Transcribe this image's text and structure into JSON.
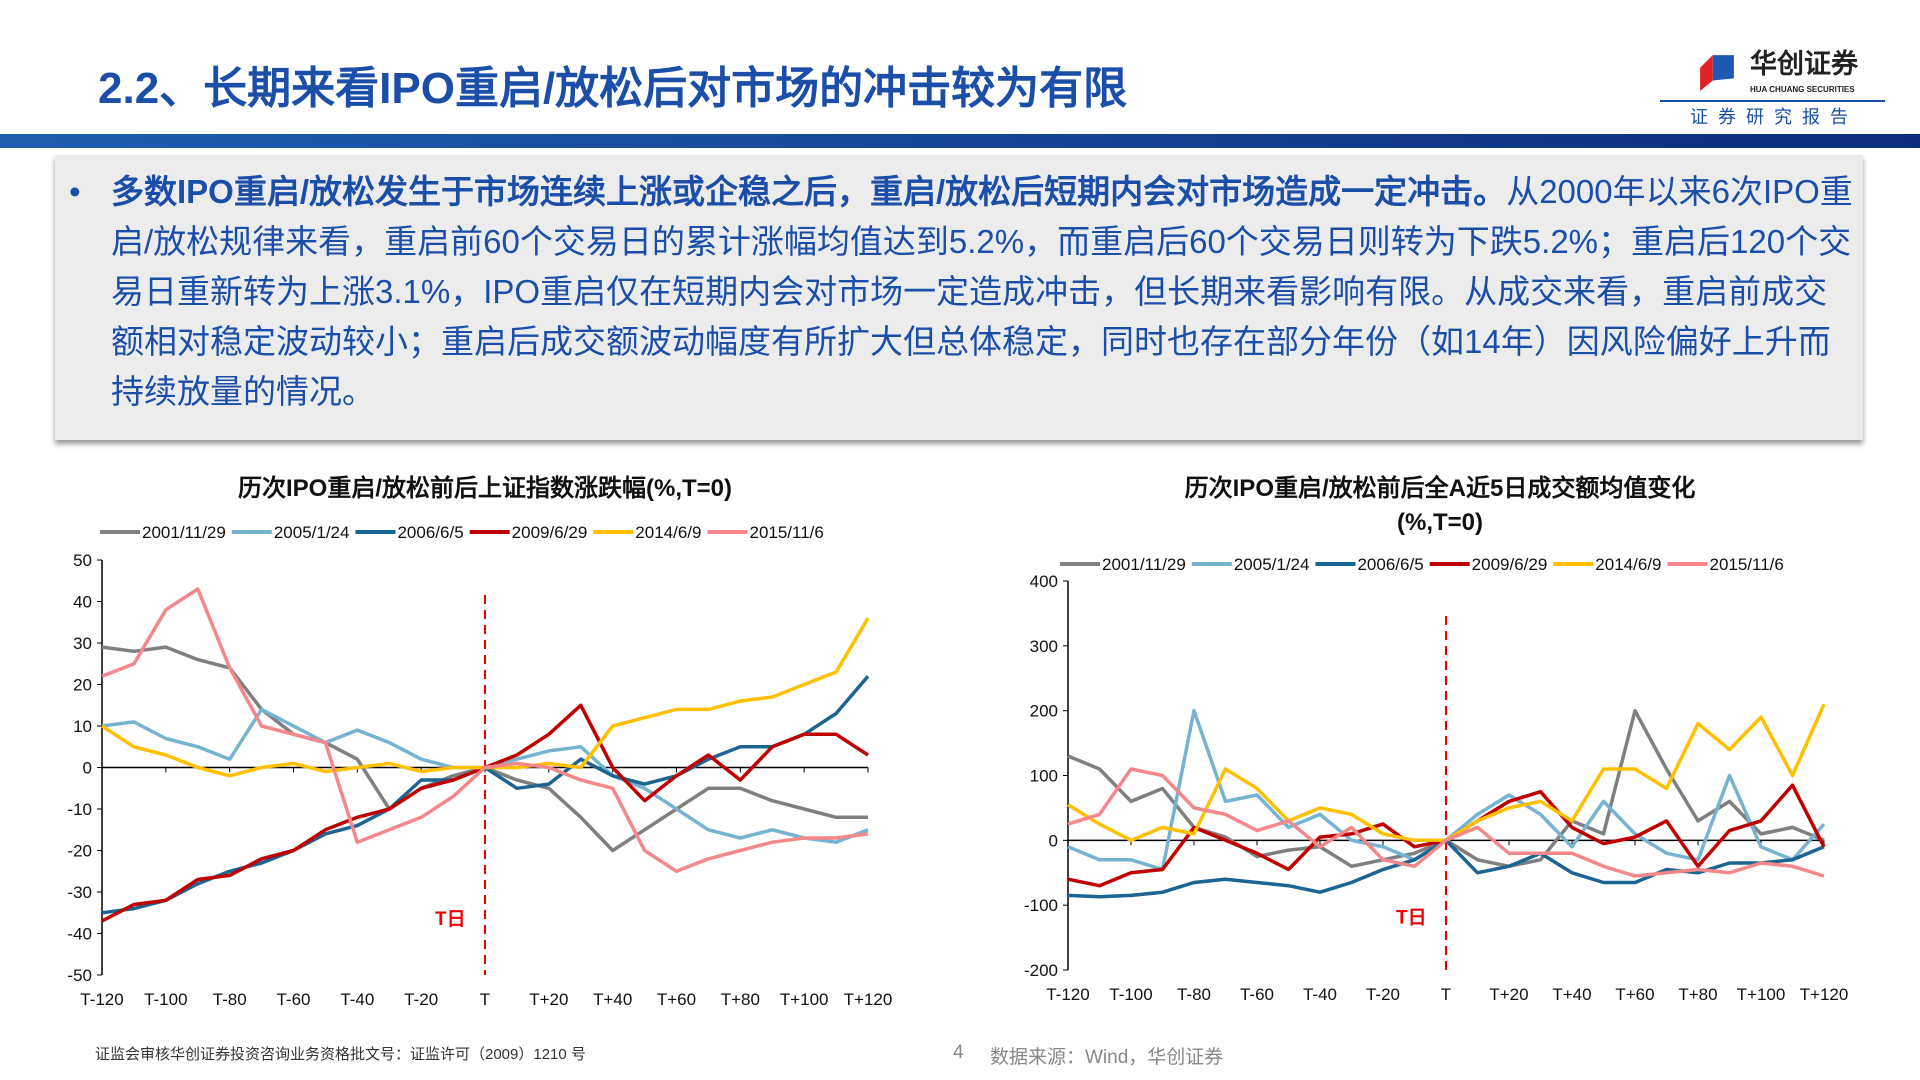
{
  "header": {
    "title": "2.2、长期来看IPO重启/放松后对市场的冲击较为有限",
    "logo_cn": "华创证券",
    "logo_en": "HUA CHUANG SECURITIES",
    "logo_sub": "证券研究报告"
  },
  "summary": {
    "bullet": "•",
    "bold": "多数IPO重启/放松发生于市场连续上涨或企稳之后，重启/放松后短期内会对市场造成一定冲击。",
    "rest": "从2000年以来6次IPO重启/放松规律来看，重启前60个交易日的累计涨幅均值达到5.2%，而重启后60个交易日则转为下跌5.2%；重启后120个交易日重新转为上涨3.1%，IPO重启仅在短期内会对市场一定造成冲击，但长期来看影响有限。从成交来看，重启前成交额相对稳定波动较小；重启后成交额波动幅度有所扩大但总体稳定，同时也存在部分年份（如14年）因风险偏好上升而持续放量的情况。"
  },
  "footer": {
    "license": "证监会审核华创证券投资咨询业务资格批文号：证监许可（2009）1210 号",
    "page": "4",
    "source": "数据来源：Wind，华创证券"
  },
  "chart_data": [
    {
      "type": "line",
      "title": "历次IPO重启/放松前后上证指数涨跌幅(%,T=0)",
      "marker_label": "T日",
      "ylim": [
        -50,
        50
      ],
      "yticks": [
        50,
        40,
        30,
        20,
        10,
        0,
        -10,
        -20,
        -30,
        -40,
        -50
      ],
      "xtick_labels": [
        "T-120",
        "T-100",
        "T-80",
        "T-60",
        "T-40",
        "T-20",
        "T",
        "T+20",
        "T+40",
        "T+60",
        "T+80",
        "T+100",
        "T+120"
      ],
      "x": [
        -120,
        -110,
        -100,
        -90,
        -80,
        -70,
        -60,
        -50,
        -40,
        -30,
        -20,
        -10,
        0,
        10,
        20,
        30,
        40,
        50,
        60,
        70,
        80,
        90,
        100,
        110,
        120
      ],
      "series": [
        {
          "name": "2001/11/29",
          "color": "#7f7f7f",
          "values": [
            29,
            28,
            29,
            26,
            24,
            14,
            8,
            6,
            2,
            -10,
            -5,
            -2,
            0,
            -3,
            -5,
            -12,
            -20,
            -15,
            -10,
            -5,
            -5,
            -8,
            -10,
            -12,
            -12
          ]
        },
        {
          "name": "2005/1/24",
          "color": "#75b3d1",
          "values": [
            10,
            11,
            7,
            5,
            2,
            14,
            10,
            6,
            9,
            6,
            2,
            0,
            0,
            2,
            4,
            5,
            -2,
            -5,
            -10,
            -15,
            -17,
            -15,
            -17,
            -18,
            -15
          ]
        },
        {
          "name": "2006/6/5",
          "color": "#1c6491",
          "values": [
            -35,
            -34,
            -32,
            -28,
            -25,
            -23,
            -20,
            -16,
            -14,
            -10,
            -3,
            -3,
            0,
            -5,
            -4,
            2,
            -2,
            -4,
            -2,
            2,
            5,
            5,
            8,
            13,
            22
          ]
        },
        {
          "name": "2009/6/29",
          "color": "#c00000",
          "values": [
            -37,
            -33,
            -32,
            -27,
            -26,
            -22,
            -20,
            -15,
            -12,
            -10,
            -5,
            -3,
            0,
            3,
            8,
            15,
            0,
            -8,
            -2,
            3,
            -3,
            5,
            8,
            8,
            3
          ]
        },
        {
          "name": "2014/6/9",
          "color": "#ffc000",
          "values": [
            10,
            5,
            3,
            0,
            -2,
            0,
            1,
            -1,
            0,
            1,
            -1,
            0,
            0,
            0,
            1,
            0,
            10,
            12,
            14,
            14,
            16,
            17,
            20,
            23,
            36
          ]
        },
        {
          "name": "2015/11/6",
          "color": "#f4878a",
          "values": [
            22,
            25,
            38,
            43,
            24,
            10,
            8,
            6,
            -18,
            -15,
            -12,
            -7,
            0,
            1,
            0,
            -3,
            -5,
            -20,
            -25,
            -22,
            -20,
            -18,
            -17,
            -17,
            -16
          ]
        }
      ]
    },
    {
      "type": "line",
      "title": "历次IPO重启/放松前后全A近5日成交额均值变化",
      "title2": "(%,T=0)",
      "marker_label": "T日",
      "ylim": [
        -200,
        400
      ],
      "yticks": [
        400,
        300,
        200,
        100,
        0,
        -100,
        -200
      ],
      "xtick_labels": [
        "T-120",
        "T-100",
        "T-80",
        "T-60",
        "T-40",
        "T-20",
        "T",
        "T+20",
        "T+40",
        "T+60",
        "T+80",
        "T+100",
        "T+120"
      ],
      "x": [
        -120,
        -110,
        -100,
        -90,
        -80,
        -70,
        -60,
        -50,
        -40,
        -30,
        -20,
        -10,
        0,
        10,
        20,
        30,
        40,
        50,
        60,
        70,
        80,
        90,
        100,
        110,
        120
      ],
      "series": [
        {
          "name": "2001/11/29",
          "color": "#7f7f7f",
          "values": [
            130,
            110,
            60,
            80,
            20,
            5,
            -25,
            -15,
            -10,
            -40,
            -30,
            -20,
            0,
            -30,
            -40,
            -30,
            30,
            10,
            200,
            110,
            30,
            60,
            10,
            20,
            0
          ]
        },
        {
          "name": "2005/1/24",
          "color": "#75b3d1",
          "values": [
            -10,
            -30,
            -30,
            -45,
            200,
            60,
            70,
            20,
            40,
            0,
            -10,
            -30,
            0,
            40,
            70,
            40,
            -10,
            60,
            10,
            -20,
            -30,
            100,
            -10,
            -30,
            25
          ]
        },
        {
          "name": "2006/6/5",
          "color": "#1c6491",
          "values": [
            -85,
            -87,
            -85,
            -80,
            -65,
            -60,
            -65,
            -70,
            -80,
            -65,
            -45,
            -30,
            0,
            -50,
            -40,
            -20,
            -50,
            -65,
            -65,
            -45,
            -50,
            -35,
            -35,
            -30,
            -10
          ]
        },
        {
          "name": "2009/6/29",
          "color": "#c00000",
          "values": [
            -60,
            -70,
            -50,
            -45,
            20,
            0,
            -20,
            -45,
            5,
            10,
            25,
            -10,
            0,
            30,
            60,
            75,
            20,
            -5,
            5,
            30,
            -40,
            15,
            30,
            85,
            -10
          ]
        },
        {
          "name": "2014/6/9",
          "color": "#ffc000",
          "values": [
            55,
            25,
            0,
            20,
            10,
            110,
            80,
            30,
            50,
            40,
            10,
            0,
            0,
            30,
            50,
            60,
            30,
            110,
            110,
            80,
            180,
            140,
            190,
            100,
            210
          ]
        },
        {
          "name": "2015/11/6",
          "color": "#f4878a",
          "values": [
            25,
            40,
            110,
            100,
            50,
            40,
            15,
            30,
            -10,
            20,
            -30,
            -40,
            0,
            20,
            -20,
            -20,
            -20,
            -40,
            -55,
            -50,
            -45,
            -50,
            -35,
            -40,
            -55
          ]
        }
      ]
    }
  ]
}
